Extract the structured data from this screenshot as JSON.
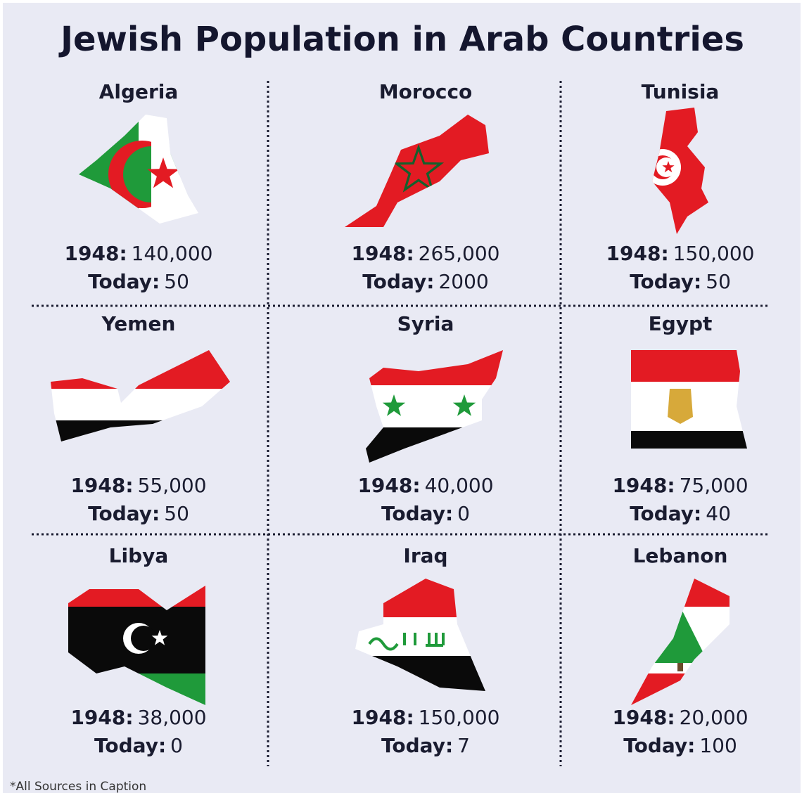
{
  "title": "Jewish Population in Arab Countries",
  "labels": {
    "then": "1948:",
    "now": "Today:"
  },
  "countries": [
    {
      "name": "Algeria",
      "then": "140,000",
      "now": "50"
    },
    {
      "name": "Morocco",
      "then": "265,000",
      "now": "2000"
    },
    {
      "name": "Tunisia",
      "then": "150,000",
      "now": "50"
    },
    {
      "name": "Yemen",
      "then": "55,000",
      "now": "50"
    },
    {
      "name": "Syria",
      "then": "40,000",
      "now": "0"
    },
    {
      "name": "Egypt",
      "then": "75,000",
      "now": "40"
    },
    {
      "name": "Libya",
      "then": "38,000",
      "now": "0"
    },
    {
      "name": "Iraq",
      "then": "150,000",
      "now": "7"
    },
    {
      "name": "Lebanon",
      "then": "20,000",
      "now": "100"
    }
  ],
  "footer": "*All Sources in Caption"
}
